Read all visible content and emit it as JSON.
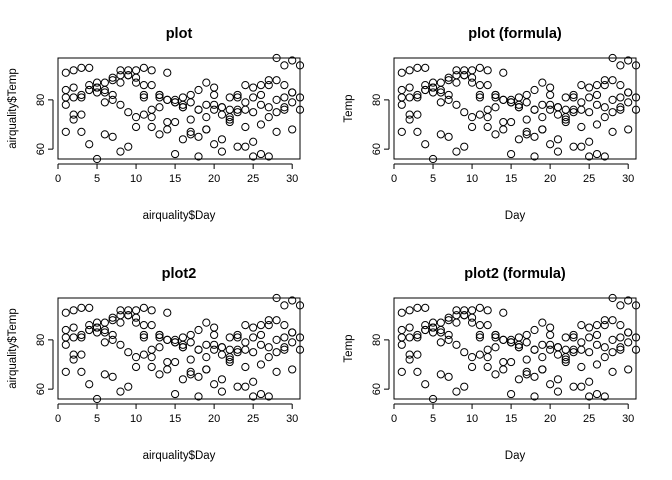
{
  "chart_data": [
    {
      "type": "scatter",
      "title": "plot",
      "xlabel": "airquality$Day",
      "ylabel": "airquality$Temp",
      "xlim": [
        0,
        31
      ],
      "ylim": [
        56,
        97
      ],
      "xticks": [
        "0",
        "5",
        "10",
        "15",
        "20",
        "25",
        "30"
      ],
      "yticks": [
        "60",
        "80"
      ],
      "grid": false,
      "series_ref": "airquality"
    },
    {
      "type": "scatter",
      "title": "plot (formula)",
      "xlabel": "Day",
      "ylabel": "Temp",
      "xlim": [
        0,
        31
      ],
      "ylim": [
        56,
        97
      ],
      "xticks": [
        "0",
        "5",
        "10",
        "15",
        "20",
        "25",
        "30"
      ],
      "yticks": [
        "60",
        "80"
      ],
      "grid": false,
      "series_ref": "airquality"
    },
    {
      "type": "scatter",
      "title": "plot2",
      "xlabel": "airquality$Day",
      "ylabel": "airquality$Temp",
      "xlim": [
        0,
        31
      ],
      "ylim": [
        56,
        97
      ],
      "xticks": [
        "0",
        "5",
        "10",
        "15",
        "20",
        "25",
        "30"
      ],
      "yticks": [
        "60",
        "80"
      ],
      "grid": false,
      "series_ref": "airquality"
    },
    {
      "type": "scatter",
      "title": "plot2 (formula)",
      "xlabel": "Day",
      "ylabel": "Temp",
      "xlim": [
        0,
        31
      ],
      "ylim": [
        56,
        97
      ],
      "xticks": [
        "0",
        "5",
        "10",
        "15",
        "20",
        "25",
        "30"
      ],
      "yticks": [
        "60",
        "80"
      ],
      "grid": false,
      "series_ref": "airquality"
    }
  ],
  "points": {
    "airquality": {
      "x": [
        1,
        2,
        3,
        4,
        5,
        6,
        7,
        8,
        9,
        10,
        11,
        12,
        13,
        14,
        15,
        16,
        17,
        18,
        19,
        20,
        21,
        22,
        23,
        24,
        25,
        26,
        27,
        28,
        29,
        30,
        31,
        1,
        2,
        3,
        4,
        5,
        6,
        7,
        8,
        9,
        10,
        11,
        12,
        13,
        14,
        15,
        16,
        17,
        18,
        19,
        20,
        21,
        22,
        23,
        24,
        25,
        26,
        27,
        28,
        29,
        30,
        1,
        2,
        3,
        4,
        5,
        6,
        7,
        8,
        9,
        10,
        11,
        12,
        13,
        14,
        15,
        16,
        17,
        18,
        19,
        20,
        21,
        22,
        23,
        24,
        25,
        26,
        27,
        28,
        29,
        30,
        31,
        1,
        2,
        3,
        4,
        5,
        6,
        7,
        8,
        9,
        10,
        11,
        12,
        13,
        14,
        15,
        16,
        17,
        18,
        19,
        20,
        21,
        22,
        23,
        24,
        25,
        26,
        27,
        28,
        29,
        30,
        31,
        1,
        2,
        3,
        4,
        5,
        6,
        7,
        8,
        9,
        10,
        11,
        12,
        13,
        14,
        15,
        16,
        17,
        18,
        19,
        20,
        21,
        22,
        23,
        24,
        25,
        26,
        27,
        28,
        29,
        30
      ],
      "y": [
        67,
        72,
        74,
        62,
        56,
        66,
        65,
        59,
        61,
        69,
        74,
        69,
        66,
        68,
        58,
        64,
        66,
        57,
        68,
        62,
        59,
        73,
        61,
        61,
        57,
        58,
        57,
        67,
        81,
        79,
        76,
        78,
        74,
        67,
        84,
        85,
        79,
        82,
        87,
        90,
        87,
        93,
        92,
        82,
        80,
        79,
        77,
        72,
        65,
        73,
        76,
        77,
        76,
        76,
        76,
        75,
        78,
        73,
        80,
        77,
        83,
        84,
        85,
        81,
        84,
        83,
        83,
        88,
        92,
        92,
        89,
        82,
        73,
        81,
        91,
        80,
        81,
        82,
        84,
        87,
        85,
        74,
        81,
        82,
        86,
        85,
        82,
        86,
        88,
        86,
        83,
        81,
        81,
        81,
        82,
        86,
        85,
        87,
        89,
        90,
        90,
        92,
        86,
        86,
        82,
        80,
        79,
        77,
        79,
        76,
        78,
        78,
        77,
        72,
        75,
        79,
        81,
        86,
        88,
        97,
        94,
        96,
        94,
        91,
        92,
        93,
        93,
        87,
        84,
        80,
        78,
        75,
        73,
        81,
        76,
        77,
        71,
        71,
        78,
        67,
        76,
        68,
        82,
        64,
        71,
        81,
        69,
        63,
        70,
        77,
        75,
        76,
        68
      ]
    }
  }
}
